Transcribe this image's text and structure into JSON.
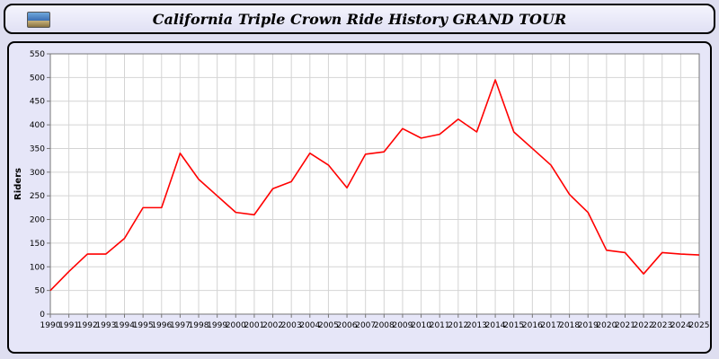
{
  "header": {
    "title": "California Triple Crown Ride History GRAND TOUR",
    "logo_icon": "landscape-photo-icon"
  },
  "chart_data": {
    "type": "line",
    "title": "California Triple Crown Ride History GRAND TOUR",
    "xlabel": "",
    "ylabel": "Riders",
    "ylim": [
      0,
      550
    ],
    "ytick_step": 50,
    "grid": true,
    "legend_position": "none",
    "line_color": "#FF0000",
    "categories": [
      "1990",
      "1991",
      "1992",
      "1993",
      "1994",
      "1995",
      "1996",
      "1997",
      "1998",
      "1999",
      "2000",
      "2001",
      "2002",
      "2003",
      "2004",
      "2005",
      "2006",
      "2007",
      "2008",
      "2009",
      "2010",
      "2011",
      "2012",
      "2013",
      "2014",
      "2015",
      "2016",
      "2017",
      "2018",
      "2019",
      "2020",
      "2021",
      "2022",
      "2023",
      "2024",
      "2025"
    ],
    "series": [
      {
        "name": "Riders",
        "values": [
          50,
          90,
          127,
          127,
          160,
          225,
          225,
          340,
          285,
          250,
          215,
          210,
          265,
          280,
          340,
          315,
          267,
          338,
          343,
          392,
          372,
          380,
          412,
          385,
          495,
          385,
          350,
          315,
          253,
          215,
          135,
          130,
          85,
          130,
          127,
          125
        ]
      }
    ]
  },
  "style": {
    "plot_bg": "#FFFFFF",
    "grid_color": "#D4D4D4",
    "axis_color": "#777777",
    "tick_text_color": "#000000"
  }
}
